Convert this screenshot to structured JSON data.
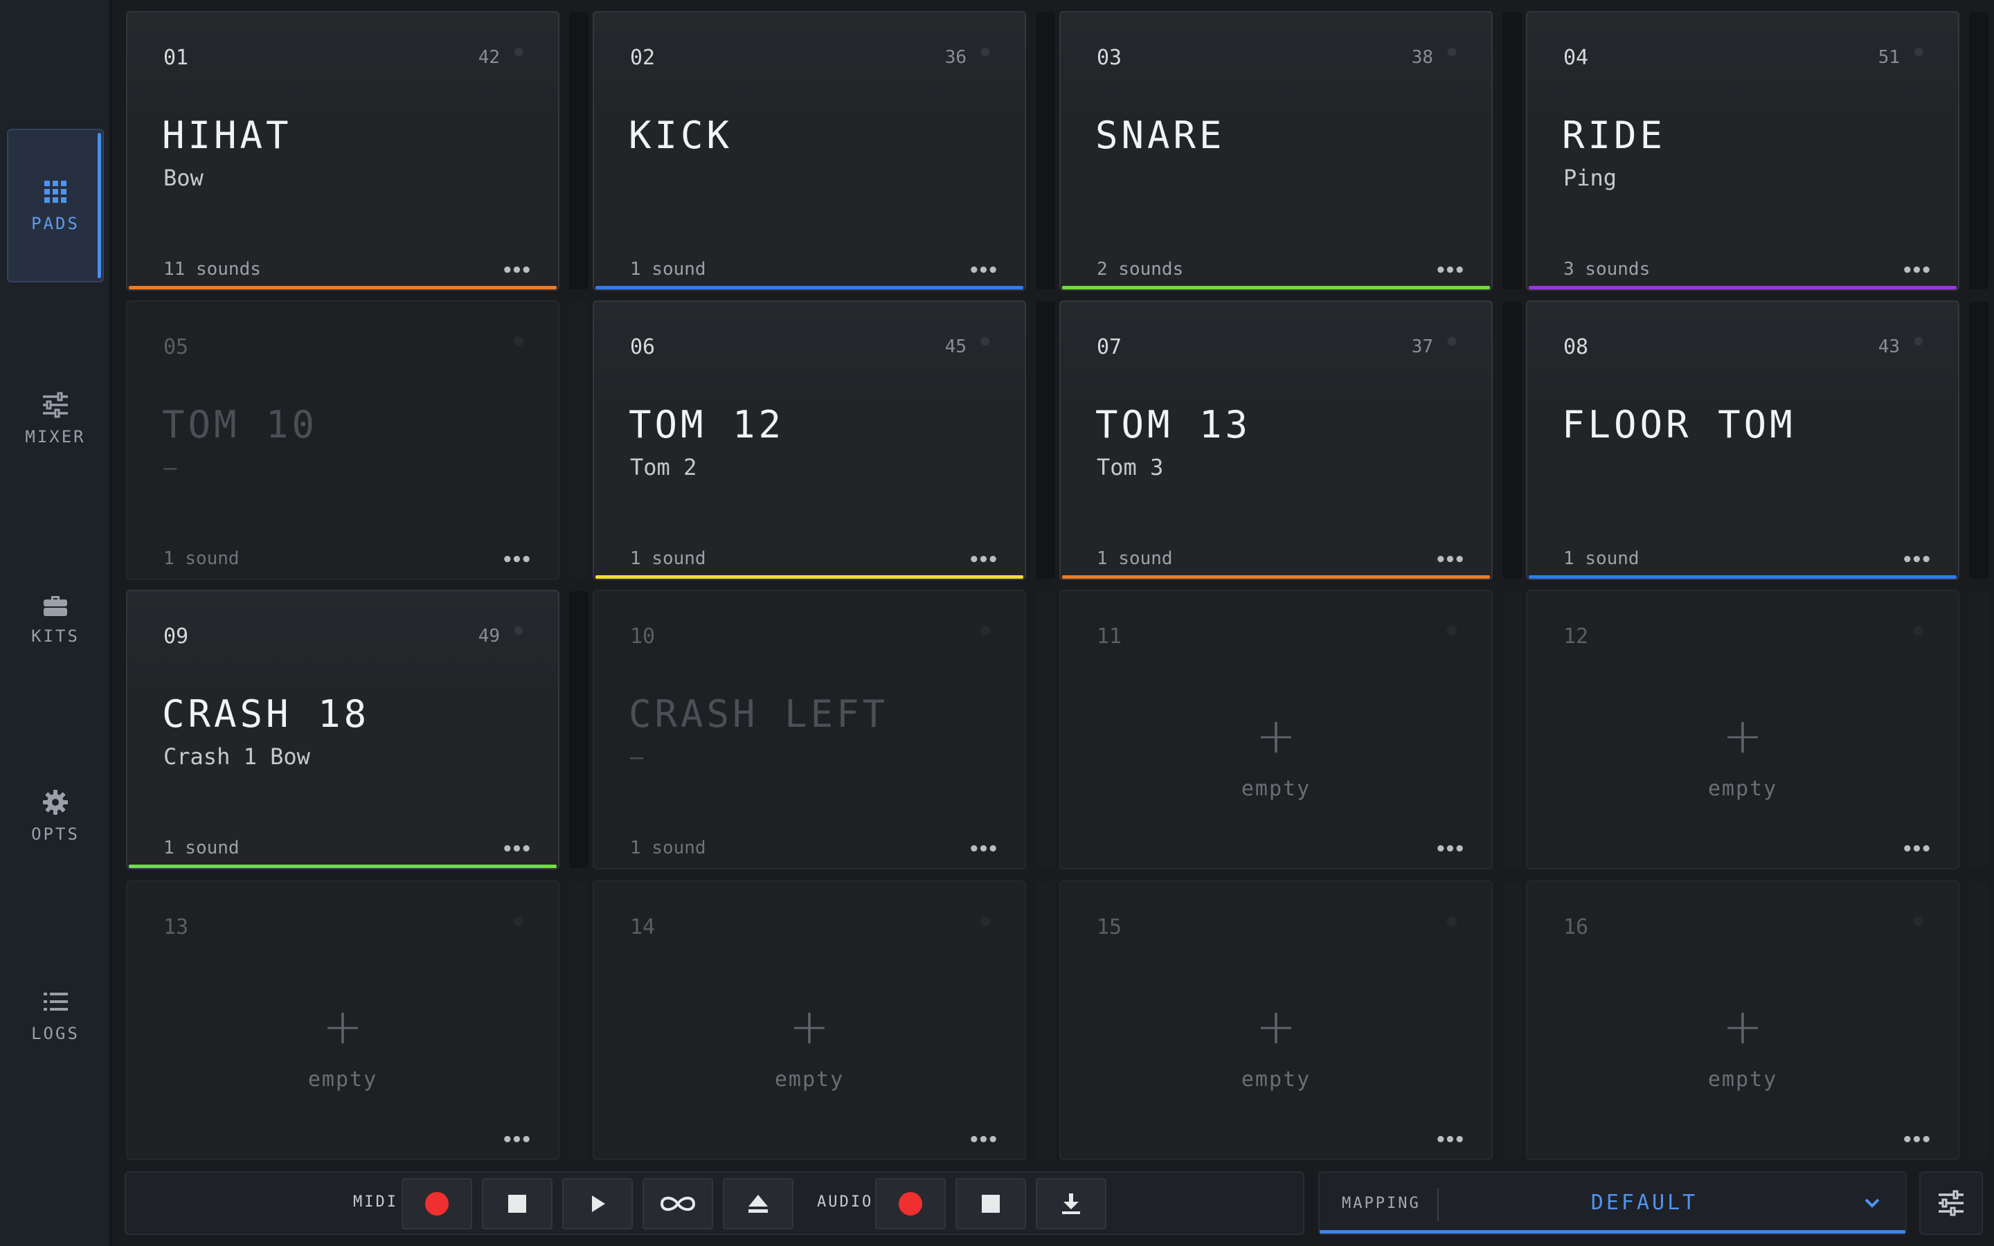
{
  "nav": {
    "items": [
      {
        "label": "PADS",
        "icon": "grid-icon",
        "active": true
      },
      {
        "label": "MIXER",
        "icon": "sliders-icon",
        "active": false
      },
      {
        "label": "KITS",
        "icon": "briefcase-icon",
        "active": false
      },
      {
        "label": "OPTS",
        "icon": "gear-icon",
        "active": false
      },
      {
        "label": "LOGS",
        "icon": "list-icon",
        "active": false
      }
    ]
  },
  "pads": [
    {
      "num": "01",
      "note": "42",
      "name": "HIHAT",
      "sub": "Bow",
      "count": "11 sounds",
      "color": "#f07a22",
      "state": "active"
    },
    {
      "num": "02",
      "note": "36",
      "name": "KICK",
      "sub": "",
      "count": "1 sound",
      "color": "#2e7cf0",
      "state": "active"
    },
    {
      "num": "03",
      "note": "38",
      "name": "SNARE",
      "sub": "",
      "count": "2 sounds",
      "color": "#6fe03a",
      "state": "active"
    },
    {
      "num": "04",
      "note": "51",
      "name": "RIDE",
      "sub": "Ping",
      "count": "3 sounds",
      "color": "#9b36e0",
      "state": "active"
    },
    {
      "num": "05",
      "note": "",
      "name": "TOM 10",
      "sub": "–",
      "count": "1 sound",
      "color": "",
      "state": "dim"
    },
    {
      "num": "06",
      "note": "45",
      "name": "TOM 12",
      "sub": "Tom 2",
      "count": "1 sound",
      "color": "#f0e02a",
      "state": "active"
    },
    {
      "num": "07",
      "note": "37",
      "name": "TOM 13",
      "sub": "Tom 3",
      "count": "1 sound",
      "color": "#f07a22",
      "state": "active"
    },
    {
      "num": "08",
      "note": "43",
      "name": "FLOOR TOM",
      "sub": "",
      "count": "1 sound",
      "color": "#2e7cf0",
      "state": "active"
    },
    {
      "num": "09",
      "note": "49",
      "name": "CRASH 18",
      "sub": "Crash 1 Bow",
      "count": "1 sound",
      "color": "#6fe03a",
      "state": "active"
    },
    {
      "num": "10",
      "note": "",
      "name": "CRASH LEFT",
      "sub": "–",
      "count": "1 sound",
      "color": "",
      "state": "dim"
    },
    {
      "num": "11",
      "state": "empty"
    },
    {
      "num": "12",
      "state": "empty"
    },
    {
      "num": "13",
      "state": "empty"
    },
    {
      "num": "14",
      "state": "empty"
    },
    {
      "num": "15",
      "state": "empty"
    },
    {
      "num": "16",
      "state": "empty"
    }
  ],
  "pad_labels": {
    "more": "•••",
    "plus": "+",
    "empty": "empty"
  },
  "transport": {
    "midi_label": "MIDI",
    "audio_label": "AUDIO"
  },
  "mapping": {
    "label": "MAPPING",
    "value": "DEFAULT"
  },
  "colors": {
    "accent": "#4f94f0",
    "record": "#f03030"
  }
}
